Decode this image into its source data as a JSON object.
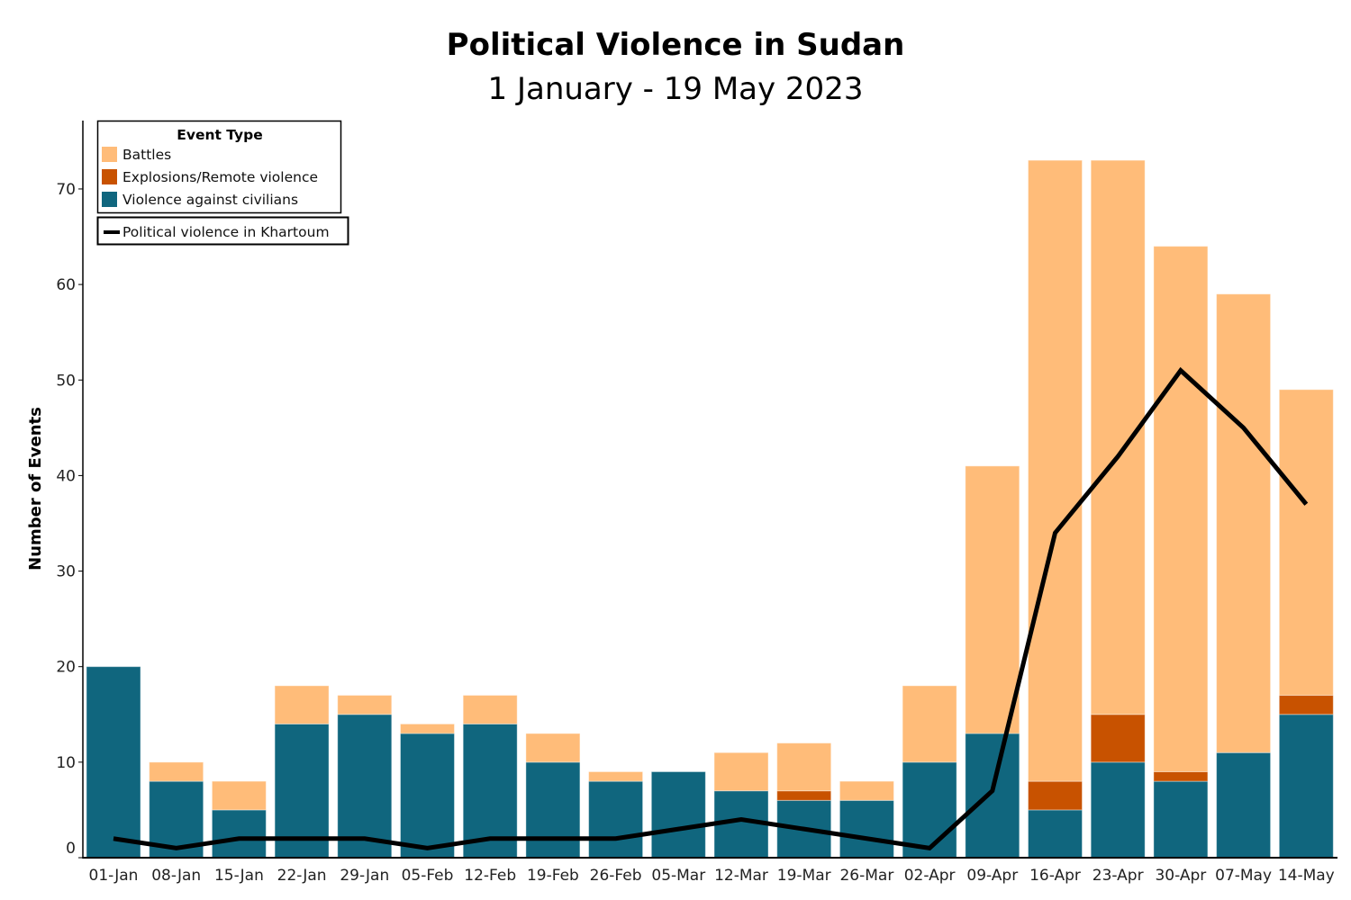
{
  "chart_data": {
    "type": "bar",
    "stacked": true,
    "title": "Political Violence in Sudan",
    "subtitle": "1 January - 19 May 2023",
    "xlabel": "",
    "ylabel": "Number of Events",
    "ylim": [
      0,
      75
    ],
    "yticks": [
      0,
      10,
      20,
      30,
      40,
      50,
      60,
      70
    ],
    "grid": false,
    "legend_title": "Event Type",
    "legend_placement": "top-left",
    "categories": [
      "01-Jan",
      "08-Jan",
      "15-Jan",
      "22-Jan",
      "29-Jan",
      "05-Feb",
      "12-Feb",
      "19-Feb",
      "26-Feb",
      "05-Mar",
      "12-Mar",
      "19-Mar",
      "26-Mar",
      "02-Apr",
      "09-Apr",
      "16-Apr",
      "23-Apr",
      "30-Apr",
      "07-May",
      "14-May"
    ],
    "series": [
      {
        "name": "Violence against civilians",
        "color": "#10667e",
        "values": [
          20,
          8,
          5,
          14,
          15,
          13,
          14,
          10,
          8,
          9,
          7,
          6,
          6,
          10,
          13,
          5,
          10,
          8,
          11,
          15
        ]
      },
      {
        "name": "Explosions/Remote violence",
        "color": "#c85200",
        "values": [
          0,
          0,
          0,
          0,
          0,
          0,
          0,
          0,
          0,
          0,
          0,
          1,
          0,
          0,
          0,
          3,
          5,
          1,
          0,
          2
        ]
      },
      {
        "name": "Battles",
        "color": "#ffbc79",
        "values": [
          0,
          2,
          3,
          4,
          2,
          1,
          3,
          3,
          1,
          0,
          4,
          5,
          2,
          8,
          28,
          65,
          58,
          55,
          48,
          32
        ]
      }
    ],
    "line": {
      "name": "Political violence in Khartoum",
      "color": "#000000",
      "type": "line",
      "values": [
        2,
        1,
        2,
        2,
        2,
        1,
        2,
        2,
        2,
        3,
        4,
        3,
        2,
        1,
        7,
        34,
        42,
        51,
        45,
        37
      ]
    },
    "legend_order": [
      "Battles",
      "Explosions/Remote violence",
      "Violence against civilians"
    ]
  }
}
